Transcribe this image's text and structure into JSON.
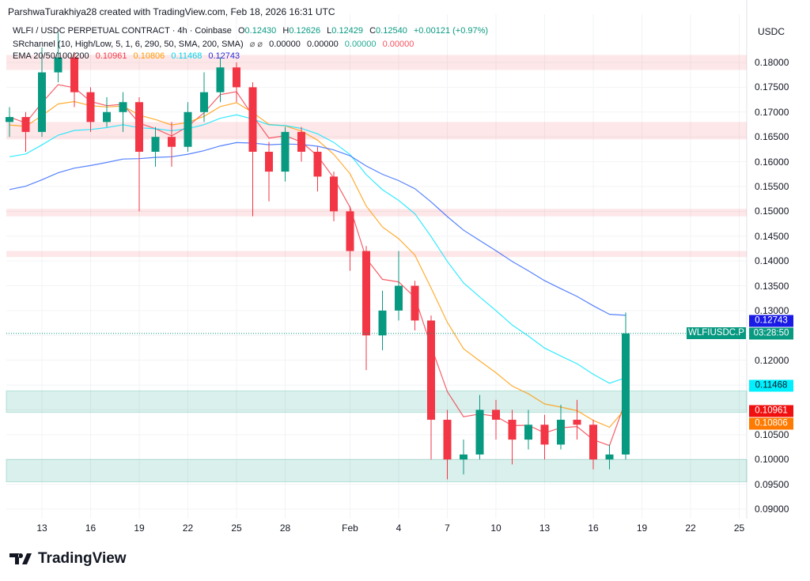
{
  "credit": "ParshwaTurakhiya28 created with TradingView.com, Feb 18, 2026 16:31 UTC",
  "legend": {
    "symbol": "WLFI / USDC PERPETUAL CONTRACT · 4h · Coinbase",
    "o_label": "O",
    "o": "0.12430",
    "h_label": "H",
    "h": "0.12626",
    "l_label": "L",
    "l": "0.12429",
    "c_label": "C",
    "c": "0.12540",
    "change": "+0.00121 (+0.97%)",
    "sr_name": "SRchannel (10, High/Low, 5, 1, 6, 290, 50, SMA, 200, SMA)",
    "sr_symbols": "⌀ ⌀",
    "sr_values": [
      "0.00000",
      "0.00000",
      "0.00000",
      "0.00000"
    ],
    "ema_name": "EMA 20/50/100/200",
    "ema_values": [
      "0.10961",
      "0.10806",
      "0.11468",
      "0.12743"
    ]
  },
  "currency": "USDC",
  "symbol_tag": "WLFIUSDC.P",
  "countdown": "03:28:50",
  "colors": {
    "up": "#089981",
    "down": "#f23645",
    "ema20": "#f23645",
    "ema50": "#ff9800",
    "ema100": "#00e5ff",
    "ema200": "#2962ff"
  },
  "logo_text": "TradingView",
  "chart_data": {
    "type": "candlestick",
    "title": "WLFI / USDC PERPETUAL CONTRACT · 4h · Coinbase",
    "ylim": [
      0.087,
      0.1875
    ],
    "y_ticks": [
      "0.18000",
      "0.17500",
      "0.17000",
      "0.16500",
      "0.16000",
      "0.15500",
      "0.15000",
      "0.14500",
      "0.14000",
      "0.13500",
      "0.13000",
      "0.12500",
      "0.12000",
      "0.11500",
      "0.11000",
      "0.10500",
      "0.10000",
      "0.09500",
      "0.09000"
    ],
    "x_ticks": [
      {
        "label": "13",
        "day": 13
      },
      {
        "label": "16",
        "day": 16
      },
      {
        "label": "19",
        "day": 19
      },
      {
        "label": "22",
        "day": 22
      },
      {
        "label": "25",
        "day": 25
      },
      {
        "label": "28",
        "day": 28
      },
      {
        "label": "Feb",
        "day": 32
      },
      {
        "label": "4",
        "day": 35
      },
      {
        "label": "7",
        "day": 38
      },
      {
        "label": "10",
        "day": 41
      },
      {
        "label": "13",
        "day": 44
      },
      {
        "label": "16",
        "day": 47
      },
      {
        "label": "19",
        "day": 50
      },
      {
        "label": "22",
        "day": 53
      },
      {
        "label": "25",
        "day": 56
      }
    ],
    "candles": [
      [
        11,
        0.168,
        0.171,
        0.165,
        0.169
      ],
      [
        12,
        0.169,
        0.17,
        0.162,
        0.166
      ],
      [
        13,
        0.166,
        0.183,
        0.165,
        0.178
      ],
      [
        14,
        0.178,
        0.186,
        0.176,
        0.181
      ],
      [
        15,
        0.181,
        0.182,
        0.171,
        0.174
      ],
      [
        16,
        0.174,
        0.175,
        0.166,
        0.168
      ],
      [
        17,
        0.168,
        0.173,
        0.167,
        0.17
      ],
      [
        18,
        0.17,
        0.174,
        0.166,
        0.172
      ],
      [
        19,
        0.172,
        0.173,
        0.15,
        0.162
      ],
      [
        20,
        0.162,
        0.167,
        0.159,
        0.165
      ],
      [
        21,
        0.165,
        0.168,
        0.159,
        0.163
      ],
      [
        22,
        0.163,
        0.172,
        0.162,
        0.17
      ],
      [
        23,
        0.17,
        0.178,
        0.168,
        0.174
      ],
      [
        24,
        0.174,
        0.181,
        0.172,
        0.179
      ],
      [
        25,
        0.179,
        0.18,
        0.172,
        0.175
      ],
      [
        26,
        0.175,
        0.176,
        0.149,
        0.162
      ],
      [
        27,
        0.162,
        0.164,
        0.152,
        0.158
      ],
      [
        28,
        0.158,
        0.167,
        0.156,
        0.166
      ],
      [
        29,
        0.166,
        0.167,
        0.16,
        0.162
      ],
      [
        30,
        0.162,
        0.163,
        0.154,
        0.157
      ],
      [
        31,
        0.157,
        0.158,
        0.148,
        0.15
      ],
      [
        32,
        0.15,
        0.151,
        0.138,
        0.142
      ],
      [
        33,
        0.142,
        0.143,
        0.118,
        0.125
      ],
      [
        34,
        0.125,
        0.134,
        0.122,
        0.13
      ],
      [
        35,
        0.13,
        0.142,
        0.128,
        0.135
      ],
      [
        36,
        0.135,
        0.136,
        0.126,
        0.128
      ],
      [
        37,
        0.128,
        0.129,
        0.1,
        0.108
      ],
      [
        38,
        0.108,
        0.11,
        0.096,
        0.1
      ],
      [
        39,
        0.1,
        0.104,
        0.097,
        0.101
      ],
      [
        40,
        0.101,
        0.113,
        0.1,
        0.11
      ],
      [
        41,
        0.11,
        0.112,
        0.104,
        0.108
      ],
      [
        42,
        0.108,
        0.11,
        0.099,
        0.104
      ],
      [
        43,
        0.104,
        0.11,
        0.102,
        0.107
      ],
      [
        44,
        0.107,
        0.109,
        0.1,
        0.103
      ],
      [
        45,
        0.103,
        0.111,
        0.102,
        0.108
      ],
      [
        46,
        0.108,
        0.112,
        0.104,
        0.107
      ],
      [
        47,
        0.107,
        0.108,
        0.098,
        0.1
      ],
      [
        48,
        0.1,
        0.103,
        0.098,
        0.101
      ],
      [
        49,
        0.101,
        0.1296,
        0.1,
        0.1254
      ]
    ],
    "ema_seed": {
      "ema20": 0.169,
      "ema50": 0.167,
      "ema100": 0.16,
      "ema200": 0.1535
    },
    "resistance_zones": [
      [
        0.1785,
        0.1815
      ],
      [
        0.1645,
        0.168
      ],
      [
        0.149,
        0.1505
      ],
      [
        0.1408,
        0.142
      ]
    ],
    "support_zones": [
      [
        0.1095,
        0.1138
      ],
      [
        0.0955,
        0.1
      ]
    ],
    "last_price": 0.1254
  }
}
